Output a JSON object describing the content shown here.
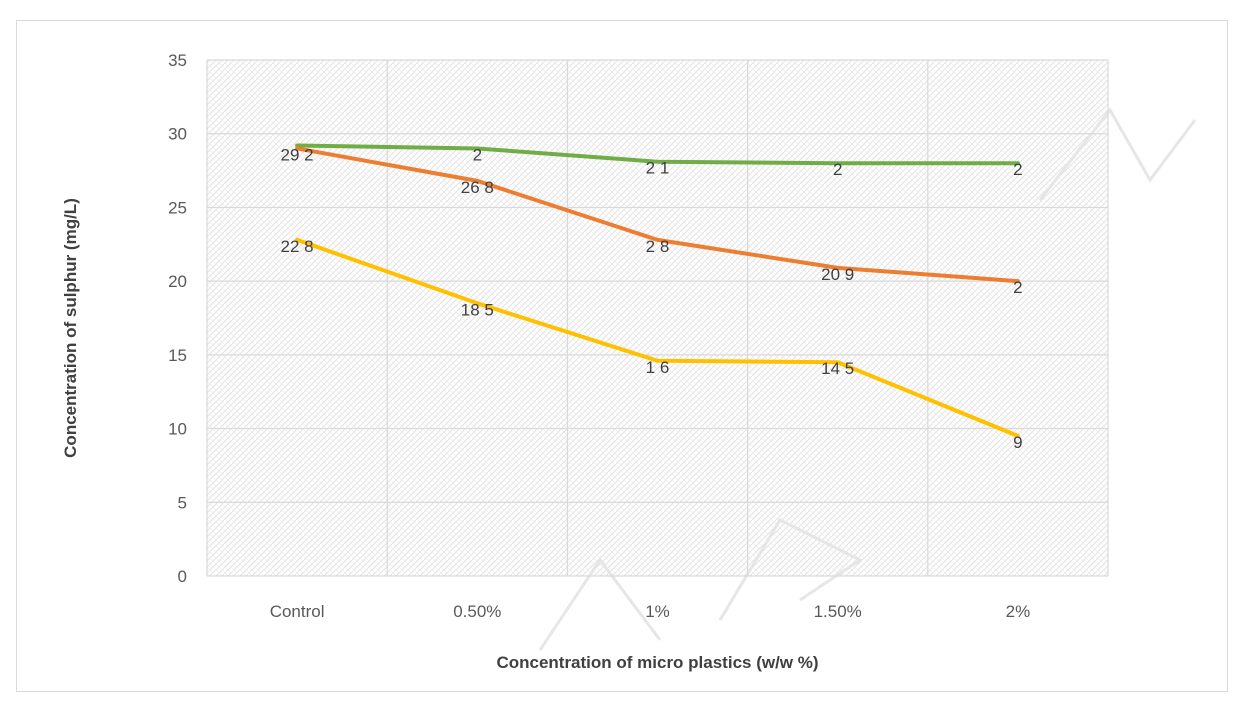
{
  "chart_data": {
    "type": "line",
    "title": "",
    "xlabel": "Concentration of micro plastics (w/w %)",
    "ylabel": "Concentration of sulphur (mg/L)",
    "categories": [
      "Control",
      "0.50%",
      "1%",
      "1.50%",
      "2%"
    ],
    "ylim": [
      0,
      35
    ],
    "yticks": [
      0,
      5,
      10,
      15,
      20,
      25,
      30,
      35
    ],
    "grid": true,
    "legend": "none",
    "series": [
      {
        "color": "#70ad47",
        "values": [
          29.2,
          29.0,
          28.1,
          28.0,
          28.0
        ],
        "labels": [
          "",
          "2",
          "2 1",
          "2",
          "2"
        ]
      },
      {
        "color": "#ed7d31",
        "values": [
          29.0,
          26.8,
          22.8,
          20.9,
          20.0
        ],
        "labels": [
          "29 2",
          "26 8",
          "2 8",
          "20 9",
          "2"
        ]
      },
      {
        "color": "#ffc000",
        "values": [
          22.8,
          18.5,
          14.6,
          14.5,
          9.5
        ],
        "labels": [
          "22 8",
          "18 5",
          "1 6",
          "14 5",
          "9"
        ]
      }
    ]
  }
}
